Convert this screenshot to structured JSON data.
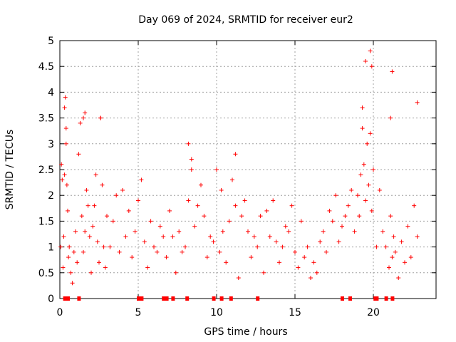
{
  "chart_data": {
    "type": "scatter",
    "title": "Day 069 of 2024, SRMTID for receiver eur2",
    "xlabel": "GPS time / hours",
    "ylabel": "SRMTID / TECUs",
    "xlim": [
      0,
      24
    ],
    "ylim": [
      0,
      5
    ],
    "xticks": [
      0,
      5,
      10,
      15,
      20
    ],
    "xtick_labels": [
      "0",
      "5",
      "10",
      "15",
      "20"
    ],
    "yticks": [
      0,
      0.5,
      1,
      1.5,
      2,
      2.5,
      3,
      3.5,
      4,
      4.5,
      5
    ],
    "ytick_labels": [
      "0",
      "0.5",
      "1",
      "1.5",
      "2",
      "2.5",
      "3",
      "3.5",
      "4",
      "4.5",
      "5"
    ],
    "grid": true,
    "marker": "+",
    "color": "#ff0000",
    "series": [
      {
        "name": "SRMTID",
        "marker": "+",
        "x": [
          0.05,
          0.1,
          0.15,
          0.2,
          0.25,
          0.3,
          0.35,
          0.4,
          0.45,
          0.5,
          0.55,
          0.6,
          0.7,
          0.8,
          0.9,
          1.0,
          1.1,
          1.2,
          1.3,
          1.4,
          1.5,
          1.6,
          1.7,
          1.8,
          1.9,
          2.0,
          2.1,
          2.2,
          2.3,
          2.4,
          2.5,
          2.6,
          2.7,
          2.8,
          2.9,
          3.0,
          3.2,
          3.4,
          3.6,
          3.8,
          4.0,
          4.2,
          4.4,
          4.6,
          4.8,
          5.0,
          5.2,
          5.4,
          5.6,
          5.8,
          6.0,
          6.2,
          6.4,
          6.6,
          6.8,
          7.0,
          7.2,
          7.4,
          7.6,
          7.8,
          8.0,
          8.2,
          8.4,
          8.6,
          8.8,
          9.0,
          9.2,
          9.4,
          9.6,
          9.8,
          10.0,
          10.2,
          10.4,
          10.6,
          10.8,
          11.0,
          11.2,
          11.4,
          11.6,
          11.8,
          12.0,
          12.2,
          12.4,
          12.6,
          12.8,
          13.0,
          13.2,
          13.4,
          13.6,
          13.8,
          14.0,
          14.2,
          14.4,
          14.6,
          14.8,
          15.0,
          15.2,
          15.4,
          15.6,
          15.8,
          16.0,
          16.2,
          16.4,
          16.6,
          16.8,
          17.0,
          17.2,
          17.4,
          17.6,
          17.8,
          18.0,
          18.2,
          18.4,
          18.6,
          18.8,
          19.0,
          19.1,
          19.2,
          19.3,
          19.4,
          19.5,
          19.6,
          19.7,
          19.8,
          19.9,
          20.0,
          20.2,
          20.4,
          20.6,
          20.8,
          21.0,
          21.1,
          21.2,
          21.3,
          21.4,
          21.6,
          21.8,
          22.0,
          22.2,
          22.4,
          22.6,
          22.8,
          0.3,
          0.4,
          1.5,
          1.6,
          2.6,
          8.2,
          8.4,
          10.3,
          11.2,
          19.3,
          19.5,
          19.8,
          19.9,
          21.1,
          21.2,
          22.8
        ],
        "y": [
          1.0,
          2.6,
          2.3,
          0.6,
          1.2,
          2.4,
          3.9,
          3.0,
          2.2,
          1.7,
          0.8,
          1.0,
          0.5,
          0.3,
          0.9,
          1.3,
          0.7,
          2.8,
          3.4,
          1.6,
          0.9,
          1.3,
          2.1,
          1.8,
          1.2,
          0.5,
          1.4,
          1.8,
          2.4,
          1.1,
          0.7,
          3.5,
          2.2,
          1.0,
          0.6,
          1.6,
          1.0,
          1.5,
          2.0,
          0.9,
          2.1,
          1.2,
          1.7,
          0.8,
          1.3,
          1.9,
          2.3,
          1.1,
          0.6,
          1.5,
          1.0,
          0.9,
          1.4,
          1.2,
          0.8,
          1.7,
          1.2,
          0.5,
          1.3,
          0.9,
          1.0,
          1.9,
          2.5,
          1.4,
          1.8,
          2.2,
          1.6,
          0.8,
          1.2,
          1.1,
          2.5,
          0.9,
          1.3,
          0.7,
          1.5,
          2.3,
          1.8,
          0.4,
          1.6,
          1.9,
          1.3,
          0.8,
          1.2,
          1.0,
          1.6,
          0.5,
          1.7,
          1.2,
          1.9,
          1.1,
          0.7,
          1.0,
          1.4,
          1.3,
          1.8,
          0.9,
          0.6,
          1.5,
          0.8,
          1.0,
          0.4,
          0.7,
          0.5,
          1.1,
          1.3,
          0.9,
          1.7,
          1.5,
          2.0,
          1.1,
          1.4,
          1.6,
          1.8,
          2.1,
          1.3,
          2.0,
          1.6,
          2.4,
          3.3,
          2.6,
          1.9,
          3.0,
          2.2,
          3.2,
          1.7,
          2.5,
          1.0,
          2.1,
          1.3,
          1.0,
          0.6,
          1.6,
          0.8,
          1.2,
          0.9,
          0.4,
          1.1,
          0.7,
          1.4,
          0.8,
          1.8,
          1.2,
          3.7,
          3.3,
          3.5,
          3.6,
          3.5,
          3.0,
          2.7,
          2.1,
          2.8,
          3.7,
          4.6,
          4.8,
          4.5,
          3.5,
          4.4,
          3.8
        ]
      }
    ],
    "zero_markers": {
      "x": [
        0.3,
        0.5,
        1.2,
        5.0,
        5.2,
        6.6,
        6.8,
        7.2,
        8.1,
        9.8,
        10.3,
        10.9,
        12.6,
        18.0,
        18.5,
        20.1,
        20.2,
        20.8,
        21.2
      ]
    }
  }
}
